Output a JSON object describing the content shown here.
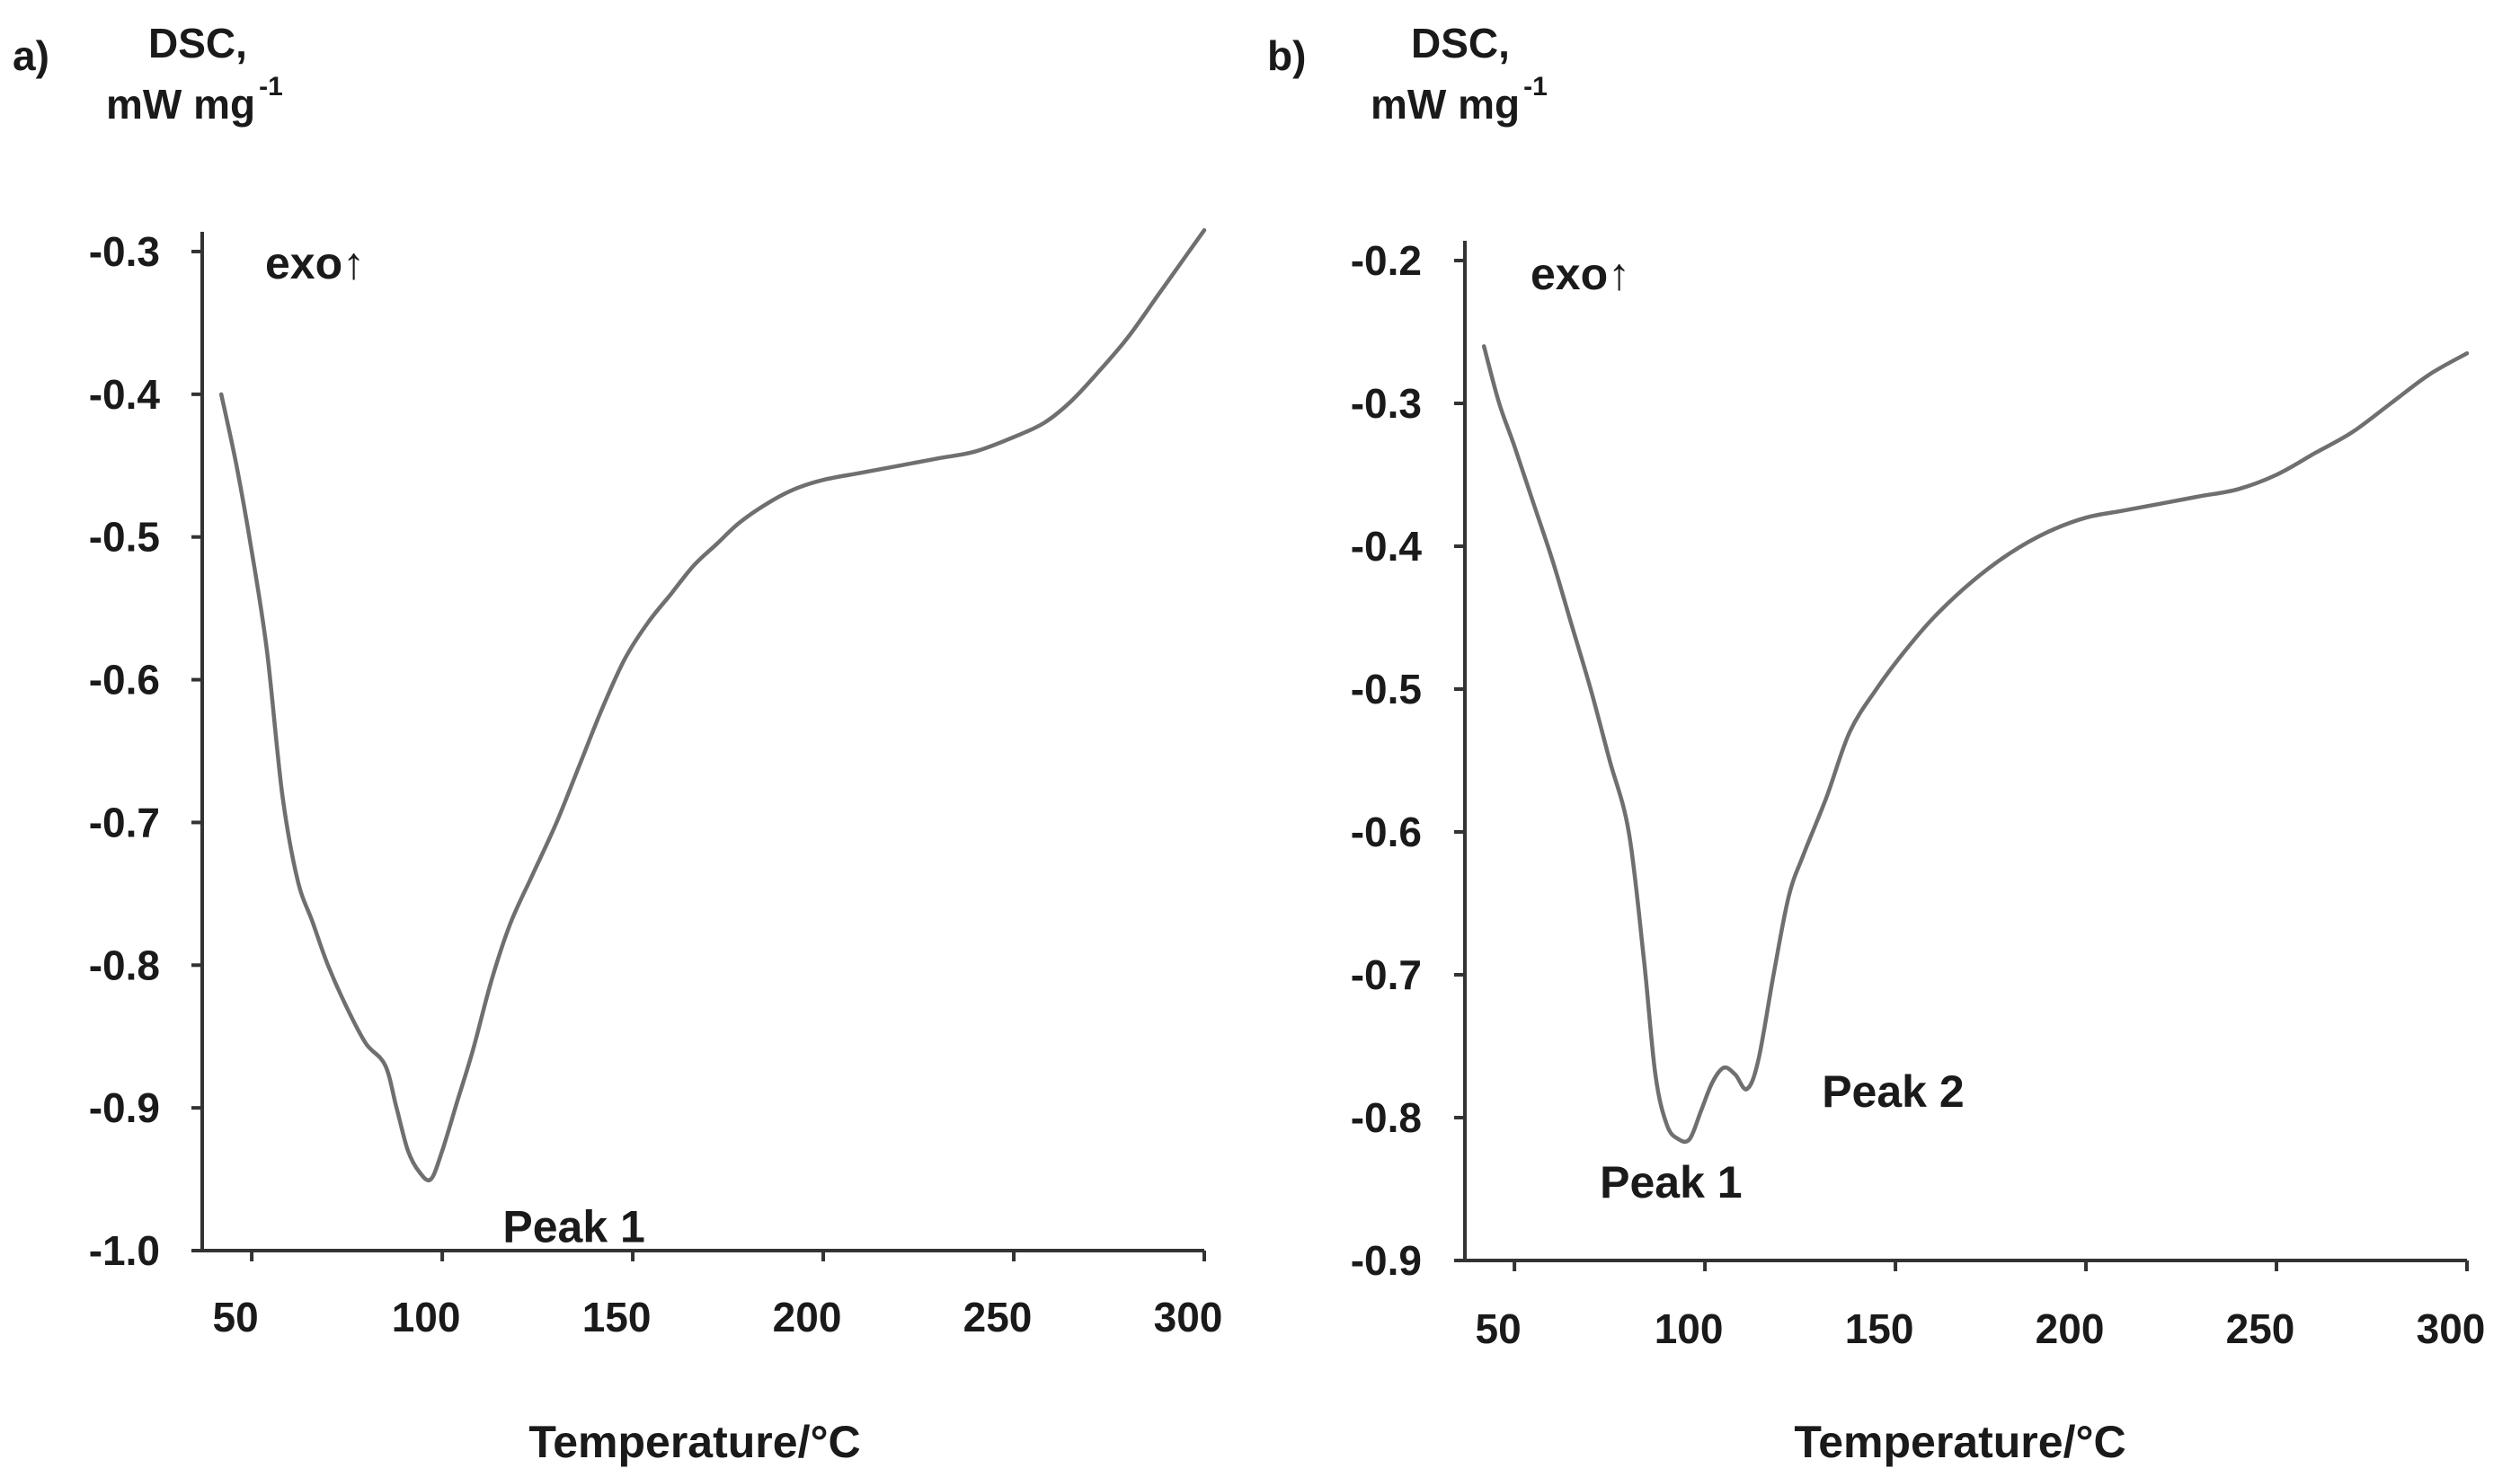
{
  "chart_data": [
    {
      "type": "line",
      "panel": "a)",
      "ylabel_main": "DSC,",
      "ylabel_unit": "mW mg",
      "ylabel_unit_exp": "-1",
      "xlabel": "Temperature/°C",
      "exo_label": "exo↑",
      "xlim": [
        37,
        300
      ],
      "ylim": [
        -1.0,
        -0.3
      ],
      "x_ticks": [
        "50",
        "100",
        "150",
        "200",
        "250",
        "300"
      ],
      "x_tick_values": [
        50,
        100,
        150,
        200,
        250,
        300
      ],
      "y_ticks": [
        "-0.3",
        "-0.4",
        "-0.5",
        "-0.6",
        "-0.7",
        "-0.8",
        "-0.9",
        "-1.0"
      ],
      "y_tick_values": [
        -0.3,
        -0.4,
        -0.5,
        -0.6,
        -0.7,
        -0.8,
        -0.9,
        -1.0
      ],
      "series": [
        {
          "name": "DSC curve a",
          "color": "#6f6f6f",
          "x": [
            42,
            46,
            50,
            54,
            58,
            62,
            66,
            70,
            75,
            80,
            85,
            88,
            91,
            94,
            97,
            100,
            104,
            108,
            113,
            118,
            124,
            130,
            136,
            142,
            148,
            154,
            160,
            166,
            172,
            178,
            185,
            192,
            200,
            210,
            220,
            230,
            240,
            250,
            258,
            265,
            272,
            280,
            288,
            296,
            300
          ],
          "y": [
            -0.4,
            -0.45,
            -0.51,
            -0.58,
            -0.68,
            -0.74,
            -0.77,
            -0.8,
            -0.83,
            -0.855,
            -0.87,
            -0.9,
            -0.93,
            -0.945,
            -0.95,
            -0.93,
            -0.895,
            -0.86,
            -0.81,
            -0.77,
            -0.735,
            -0.7,
            -0.66,
            -0.62,
            -0.585,
            -0.56,
            -0.54,
            -0.52,
            -0.505,
            -0.49,
            -0.477,
            -0.467,
            -0.46,
            -0.455,
            -0.45,
            -0.445,
            -0.44,
            -0.43,
            -0.42,
            -0.405,
            -0.385,
            -0.36,
            -0.33,
            -0.3,
            -0.285
          ]
        }
      ],
      "annotations": [
        {
          "text": "Peak 1",
          "x": 97,
          "y": -0.95
        }
      ]
    },
    {
      "type": "line",
      "panel": "b)",
      "ylabel_main": "DSC,",
      "ylabel_unit": "mW mg",
      "ylabel_unit_exp": "-1",
      "xlabel": "Temperature/°C",
      "exo_label": "exo↑",
      "xlim": [
        37,
        300
      ],
      "ylim": [
        -0.9,
        -0.2
      ],
      "x_ticks": [
        "50",
        "100",
        "150",
        "200",
        "250",
        "300"
      ],
      "x_tick_values": [
        50,
        100,
        150,
        200,
        250,
        300
      ],
      "y_ticks": [
        "-0.2",
        "-0.3",
        "-0.4",
        "-0.5",
        "-0.6",
        "-0.7",
        "-0.8",
        "-0.9"
      ],
      "y_tick_values": [
        -0.2,
        -0.3,
        -0.4,
        -0.5,
        -0.6,
        -0.7,
        -0.8,
        -0.9
      ],
      "series": [
        {
          "name": "DSC curve b",
          "color": "#6f6f6f",
          "x": [
            42,
            46,
            50,
            55,
            60,
            65,
            70,
            75,
            80,
            84,
            87,
            90,
            93,
            96,
            99,
            102,
            105,
            108,
            111,
            114,
            118,
            122,
            126,
            132,
            138,
            145,
            152,
            160,
            170,
            180,
            190,
            200,
            210,
            220,
            230,
            240,
            250,
            260,
            270,
            280,
            290,
            300
          ],
          "y": [
            -0.26,
            -0.3,
            -0.33,
            -0.37,
            -0.41,
            -0.455,
            -0.5,
            -0.55,
            -0.6,
            -0.69,
            -0.77,
            -0.805,
            -0.815,
            -0.815,
            -0.795,
            -0.775,
            -0.765,
            -0.77,
            -0.78,
            -0.76,
            -0.7,
            -0.645,
            -0.615,
            -0.575,
            -0.53,
            -0.5,
            -0.475,
            -0.45,
            -0.425,
            -0.405,
            -0.39,
            -0.38,
            -0.375,
            -0.37,
            -0.365,
            -0.36,
            -0.35,
            -0.335,
            -0.32,
            -0.3,
            -0.28,
            -0.265
          ]
        }
      ],
      "annotations": [
        {
          "text": "Peak 1",
          "x": 96,
          "y": -0.815
        },
        {
          "text": "Peak 2",
          "x": 113,
          "y": -0.78
        }
      ]
    }
  ]
}
